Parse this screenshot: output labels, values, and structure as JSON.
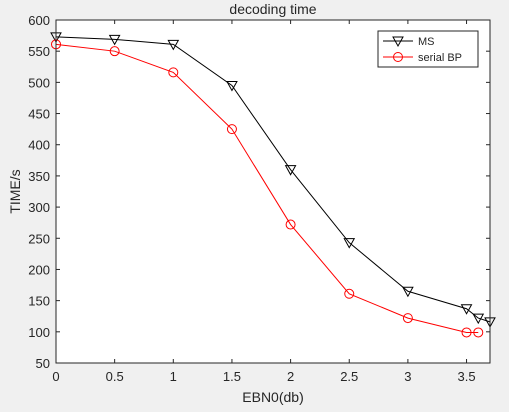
{
  "chart_data": {
    "type": "line",
    "title": "decoding time",
    "xlabel": "EBN0(db)",
    "ylabel": "TIME/s",
    "xlim": [
      0,
      3.7
    ],
    "ylim": [
      50,
      600
    ],
    "xticks": [
      0,
      0.5,
      1,
      1.5,
      2,
      2.5,
      3,
      3.5
    ],
    "xtick_labels": [
      "0",
      "0.5",
      "1",
      "1.5",
      "2",
      "2.5",
      "3",
      "3.5"
    ],
    "yticks": [
      50,
      100,
      150,
      200,
      250,
      300,
      350,
      400,
      450,
      500,
      550,
      600
    ],
    "ytick_labels": [
      "50",
      "100",
      "150",
      "200",
      "250",
      "300",
      "350",
      "400",
      "450",
      "500",
      "550",
      "600"
    ],
    "grid": false,
    "legend_position": "top-right",
    "background": "#ffffff",
    "series": [
      {
        "name": "MS",
        "color": "#000000",
        "marker": "triangle-down",
        "points": [
          {
            "x": 0,
            "y": 573
          },
          {
            "x": 0.5,
            "y": 569
          },
          {
            "x": 1,
            "y": 561
          },
          {
            "x": 1.5,
            "y": 495
          },
          {
            "x": 2,
            "y": 360
          },
          {
            "x": 2.5,
            "y": 243
          },
          {
            "x": 3,
            "y": 165
          },
          {
            "x": 3.5,
            "y": 137
          },
          {
            "x": 3.6,
            "y": 122
          },
          {
            "x": 3.7,
            "y": 116
          }
        ]
      },
      {
        "name": "serial BP",
        "color": "#ff0000",
        "marker": "circle",
        "points": [
          {
            "x": 0,
            "y": 561
          },
          {
            "x": 0.5,
            "y": 550
          },
          {
            "x": 1,
            "y": 516
          },
          {
            "x": 1.5,
            "y": 425
          },
          {
            "x": 2,
            "y": 272
          },
          {
            "x": 2.5,
            "y": 161
          },
          {
            "x": 3,
            "y": 122
          },
          {
            "x": 3.5,
            "y": 99
          },
          {
            "x": 3.6,
            "y": 99
          }
        ]
      }
    ]
  }
}
